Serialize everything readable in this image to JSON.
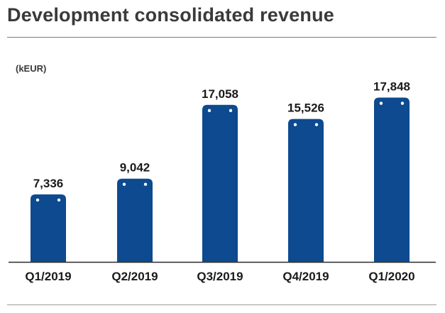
{
  "title": "Development consolidated revenue",
  "chart_data": {
    "type": "bar",
    "title": "Development consolidated revenue",
    "ylabel": "(kEUR)",
    "categories": [
      "Q1/2019",
      "Q2/2019",
      "Q3/2019",
      "Q4/2019",
      "Q1/2020"
    ],
    "values": [
      7336,
      9042,
      17058,
      15526,
      17848
    ],
    "value_labels": [
      "7,336",
      "9,042",
      "17,058",
      "15,526",
      "17,848"
    ],
    "ylim": [
      0,
      20000
    ],
    "grid": false,
    "legend": "none",
    "bar_color": "#0d4a8f",
    "text_color": "#1a1a1a"
  }
}
